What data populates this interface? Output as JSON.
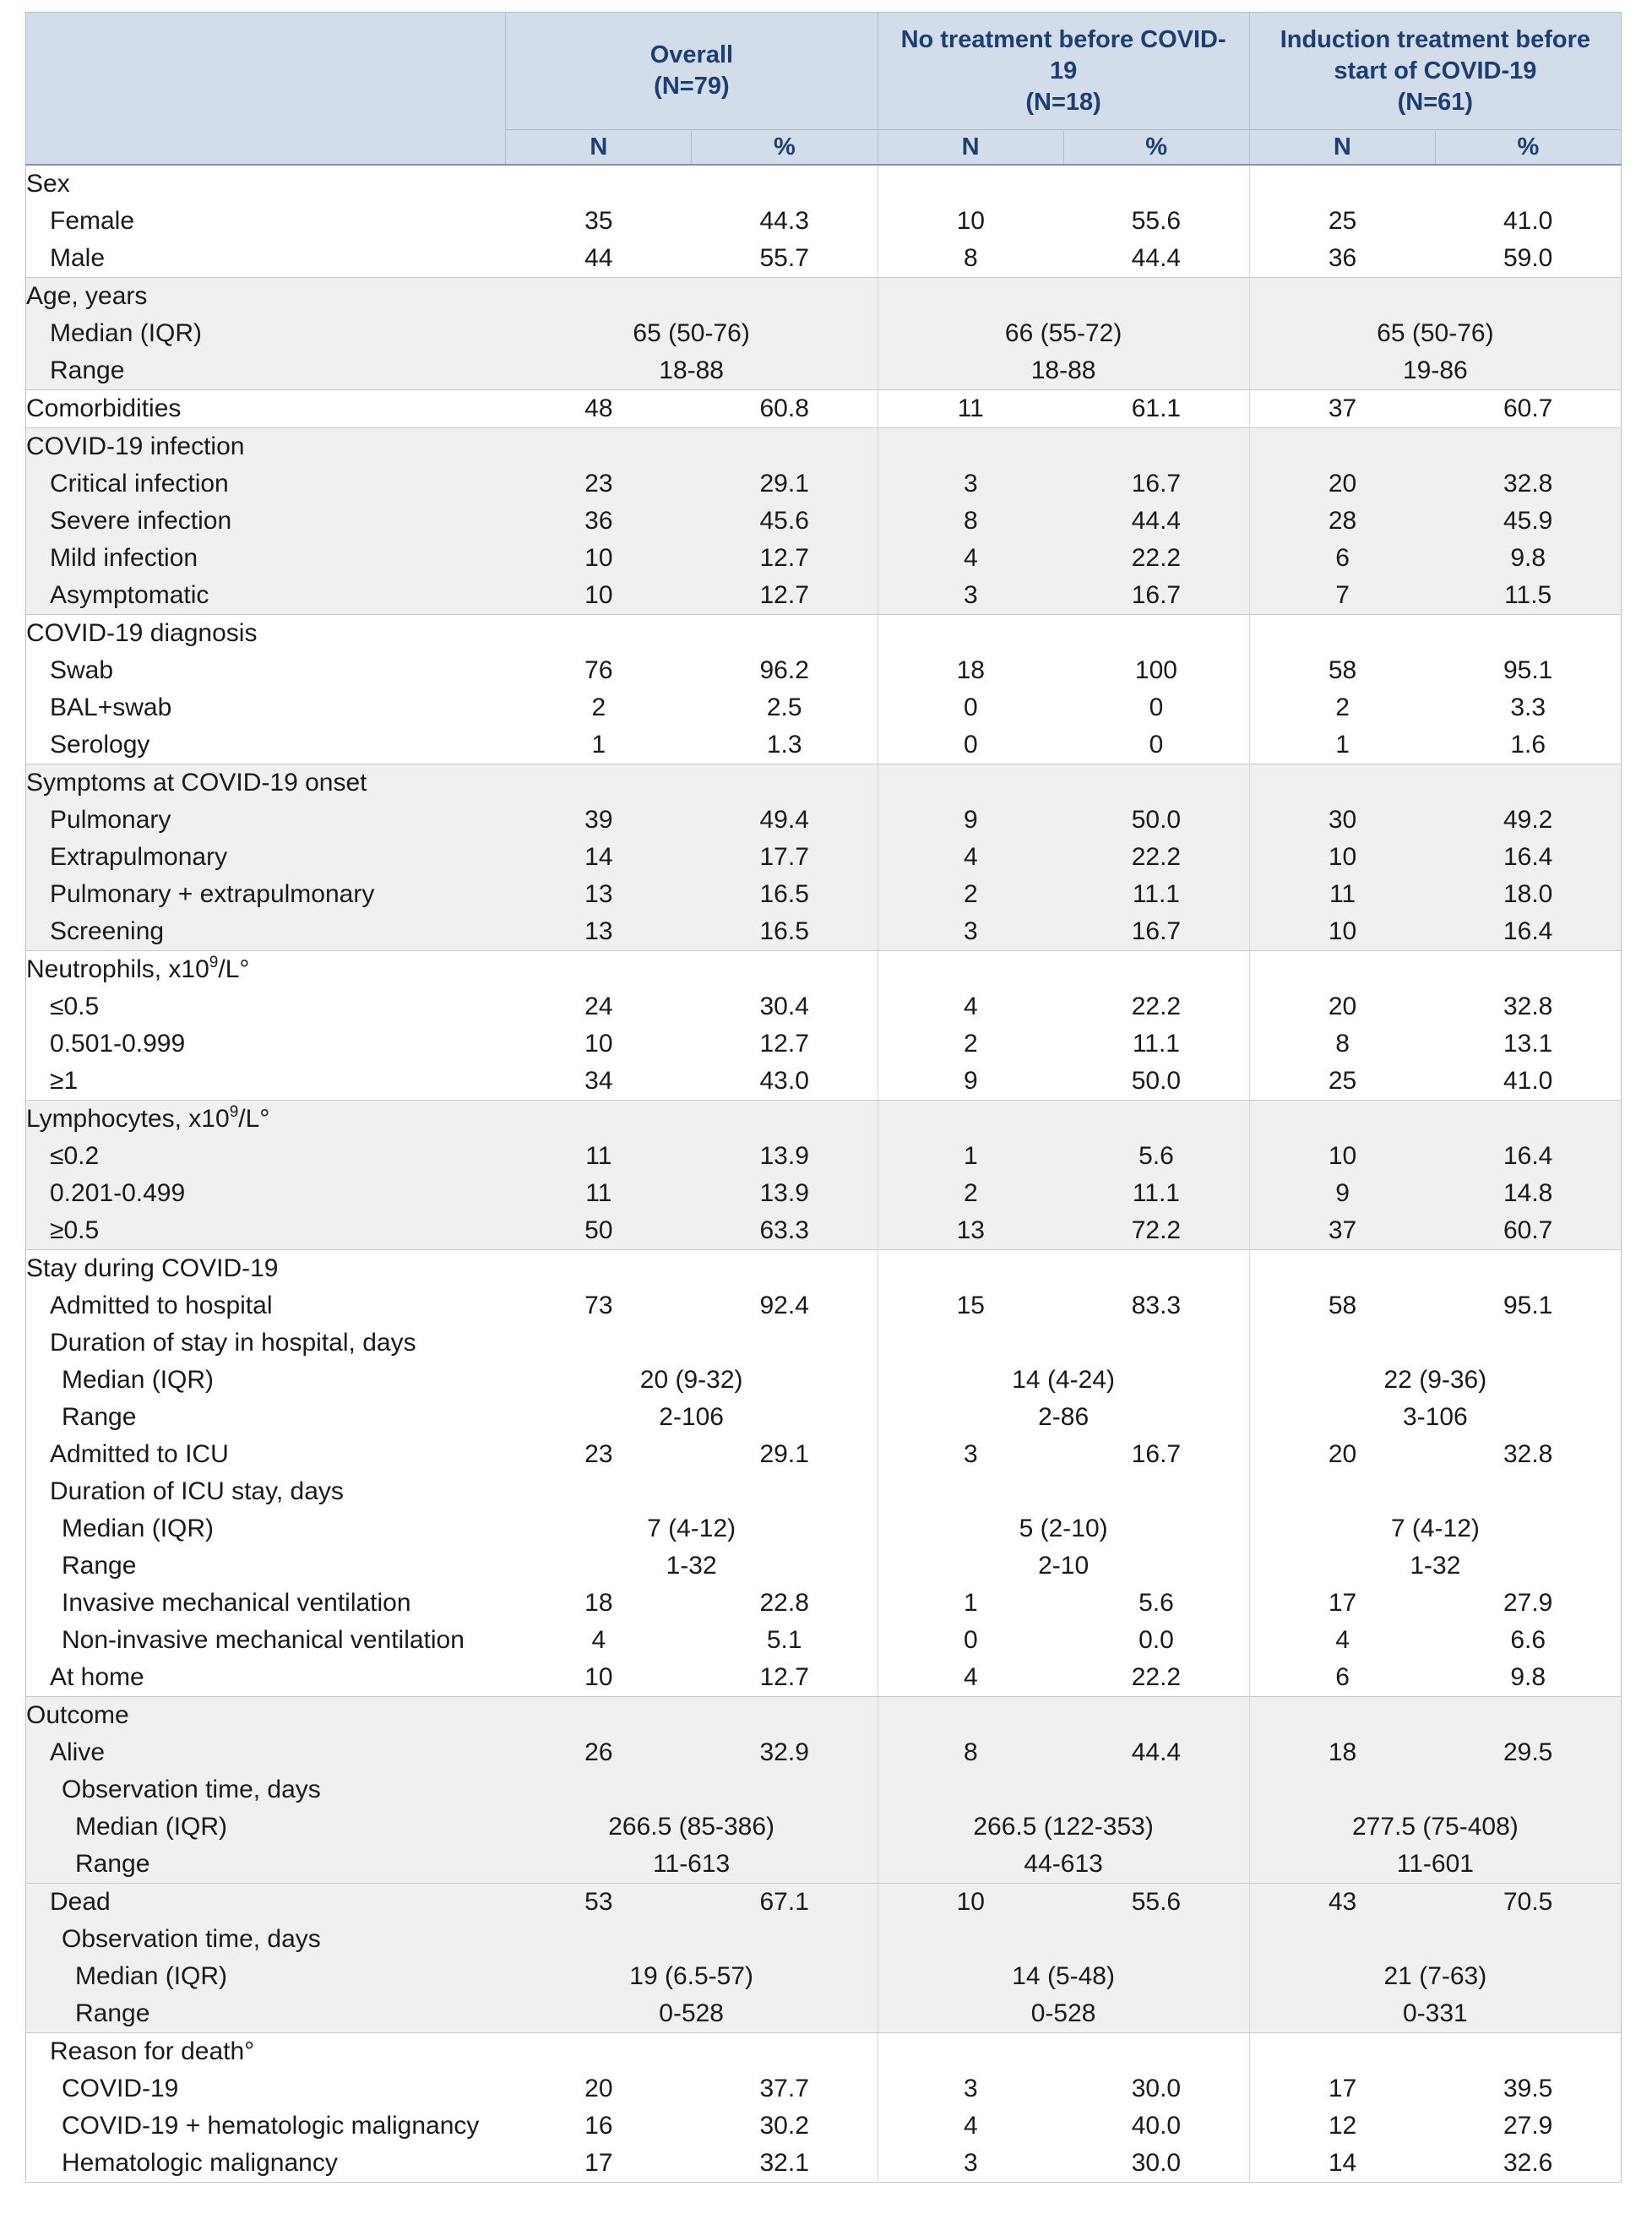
{
  "header": {
    "groups": [
      {
        "name": "Overall",
        "n_label": "(N=79)"
      },
      {
        "name": "No treatment before COVID-19",
        "n_label": "(N=18)"
      },
      {
        "name": "Induction treatment before start of COVID-19",
        "n_label": "(N=61)"
      }
    ],
    "n_col": "N",
    "pct_col": "%"
  },
  "sections": [
    {
      "title": "Sex",
      "rows": [
        {
          "label": "Female",
          "values": [
            "35",
            "44.3",
            "10",
            "55.6",
            "25",
            "41.0"
          ]
        },
        {
          "label": "Male",
          "values": [
            "44",
            "55.7",
            "8",
            "44.4",
            "36",
            "59.0"
          ]
        }
      ]
    },
    {
      "title": "Age, years",
      "rows": [
        {
          "label": "Median (IQR)",
          "spans": [
            "65 (50-76)",
            "66 (55-72)",
            "65 (50-76)"
          ]
        },
        {
          "label": "Range",
          "spans": [
            "18-88",
            "18-88",
            "19-86"
          ]
        }
      ]
    },
    {
      "title": "Comorbidities",
      "values": [
        "48",
        "60.8",
        "11",
        "61.1",
        "37",
        "60.7"
      ]
    },
    {
      "title": "COVID-19 infection",
      "rows": [
        {
          "label": "Critical infection",
          "values": [
            "23",
            "29.1",
            "3",
            "16.7",
            "20",
            "32.8"
          ]
        },
        {
          "label": "Severe infection",
          "values": [
            "36",
            "45.6",
            "8",
            "44.4",
            "28",
            "45.9"
          ]
        },
        {
          "label": "Mild infection",
          "values": [
            "10",
            "12.7",
            "4",
            "22.2",
            "6",
            "9.8"
          ]
        },
        {
          "label": "Asymptomatic",
          "values": [
            "10",
            "12.7",
            "3",
            "16.7",
            "7",
            "11.5"
          ]
        }
      ]
    },
    {
      "title": "COVID-19 diagnosis",
      "rows": [
        {
          "label": "Swab",
          "values": [
            "76",
            "96.2",
            "18",
            "100",
            "58",
            "95.1"
          ]
        },
        {
          "label": "BAL+swab",
          "values": [
            "2",
            "2.5",
            "0",
            "0",
            "2",
            "3.3"
          ]
        },
        {
          "label": "Serology",
          "values": [
            "1",
            "1.3",
            "0",
            "0",
            "1",
            "1.6"
          ]
        }
      ]
    },
    {
      "title": "Symptoms at COVID-19 onset",
      "rows": [
        {
          "label": "Pulmonary",
          "values": [
            "39",
            "49.4",
            "9",
            "50.0",
            "30",
            "49.2"
          ]
        },
        {
          "label": "Extrapulmonary",
          "values": [
            "14",
            "17.7",
            "4",
            "22.2",
            "10",
            "16.4"
          ]
        },
        {
          "label": "Pulmonary + extrapulmonary",
          "values": [
            "13",
            "16.5",
            "2",
            "11.1",
            "11",
            "18.0"
          ]
        },
        {
          "label": "Screening",
          "values": [
            "13",
            "16.5",
            "3",
            "16.7",
            "10",
            "16.4"
          ]
        }
      ]
    },
    {
      "title": "Neutrophils, x10",
      "title_sup": "9",
      "title_suffix": "/L°",
      "rows": [
        {
          "label": "≤0.5",
          "values": [
            "24",
            "30.4",
            "4",
            "22.2",
            "20",
            "32.8"
          ]
        },
        {
          "label": "0.501-0.999",
          "values": [
            "10",
            "12.7",
            "2",
            "11.1",
            "8",
            "13.1"
          ]
        },
        {
          "label": "≥1",
          "values": [
            "34",
            "43.0",
            "9",
            "50.0",
            "25",
            "41.0"
          ]
        }
      ]
    },
    {
      "title": "Lymphocytes, x10",
      "title_sup": "9",
      "title_suffix": "/L°",
      "rows": [
        {
          "label": "≤0.2",
          "values": [
            "11",
            "13.9",
            "1",
            "5.6",
            "10",
            "16.4"
          ]
        },
        {
          "label": "0.201-0.499",
          "values": [
            "11",
            "13.9",
            "2",
            "11.1",
            "9",
            "14.8"
          ]
        },
        {
          "label": "≥0.5",
          "values": [
            "50",
            "63.3",
            "13",
            "72.2",
            "37",
            "60.7"
          ]
        }
      ]
    },
    {
      "title": "Stay during COVID-19",
      "rows": [
        {
          "label": "Admitted to hospital",
          "values": [
            "73",
            "92.4",
            "15",
            "83.3",
            "58",
            "95.1"
          ]
        },
        {
          "label": "Duration of stay in hospital, days"
        },
        {
          "label": "Median (IQR)",
          "spans": [
            "20 (9-32)",
            "14 (4-24)",
            "22 (9-36)"
          ]
        },
        {
          "label": "Range",
          "spans": [
            "2-106",
            "2-86",
            "3-106"
          ]
        },
        {
          "label": "Admitted to ICU",
          "values": [
            "23",
            "29.1",
            "3",
            "16.7",
            "20",
            "32.8"
          ]
        },
        {
          "label": "Duration of ICU stay, days"
        },
        {
          "label": "Median (IQR)",
          "spans": [
            "7 (4-12)",
            "5 (2-10)",
            "7 (4-12)"
          ]
        },
        {
          "label": "Range",
          "spans": [
            "1-32",
            "2-10",
            "1-32"
          ]
        },
        {
          "label": "Invasive mechanical ventilation",
          "values": [
            "18",
            "22.8",
            "1",
            "5.6",
            "17",
            "27.9"
          ]
        },
        {
          "label": "Non-invasive mechanical ventilation",
          "values": [
            "4",
            "5.1",
            "0",
            "0.0",
            "4",
            "6.6"
          ]
        },
        {
          "label": "At home",
          "values": [
            "10",
            "12.7",
            "4",
            "22.2",
            "6",
            "9.8"
          ]
        }
      ]
    },
    {
      "title": "Outcome",
      "rows": [
        {
          "label": "Alive",
          "values": [
            "26",
            "32.9",
            "8",
            "44.4",
            "18",
            "29.5"
          ]
        },
        {
          "label": "Observation time, days"
        },
        {
          "label": "Median (IQR)",
          "spans": [
            "266.5 (85-386)",
            "266.5 (122-353)",
            "277.5 (75-408)"
          ]
        },
        {
          "label": "Range",
          "spans": [
            "11-613",
            "44-613",
            "11-601"
          ]
        }
      ]
    },
    {
      "dead_rows": [
        {
          "label": "Dead",
          "values": [
            "53",
            "67.1",
            "10",
            "55.6",
            "43",
            "70.5"
          ]
        },
        {
          "label": "Observation time, days"
        },
        {
          "label": "Median (IQR)",
          "spans": [
            "19 (6.5-57)",
            "14 (5-48)",
            "21 (7-63)"
          ]
        },
        {
          "label": "Range",
          "spans": [
            "0-528",
            "0-528",
            "0-331"
          ]
        }
      ]
    },
    {
      "reason_rows": [
        {
          "label": "Reason for death°"
        },
        {
          "label": "COVID-19",
          "values": [
            "20",
            "37.7",
            "3",
            "30.0",
            "17",
            "39.5"
          ]
        },
        {
          "label": "COVID-19 + hematologic malignancy",
          "values": [
            "16",
            "30.2",
            "4",
            "40.0",
            "12",
            "27.9"
          ]
        },
        {
          "label": "Hematologic malignancy",
          "values": [
            "17",
            "32.1",
            "3",
            "30.0",
            "14",
            "32.6"
          ]
        }
      ]
    }
  ]
}
